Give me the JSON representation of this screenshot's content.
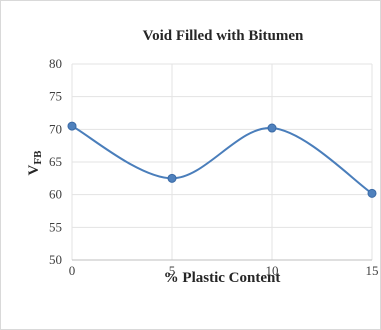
{
  "chart_data": {
    "type": "line",
    "title": "Void Filled with Bitumen",
    "xlabel": "% Plastic Content",
    "ylabel_main": "V",
    "ylabel_sub": "FB",
    "x": [
      0,
      5,
      10,
      15
    ],
    "series": [
      {
        "values": [
          70.5,
          62.5,
          70.2,
          60.2
        ]
      }
    ],
    "xlim": [
      0,
      15
    ],
    "ylim": [
      50,
      80
    ],
    "xticks": [
      0,
      5,
      10,
      15
    ],
    "yticks": [
      50,
      55,
      60,
      65,
      70,
      75,
      80
    ],
    "grid": true,
    "smooth": true,
    "line_color": "#4a7ebb",
    "marker_fill": "#4f81bd",
    "marker_stroke": "#3a6aa6"
  }
}
